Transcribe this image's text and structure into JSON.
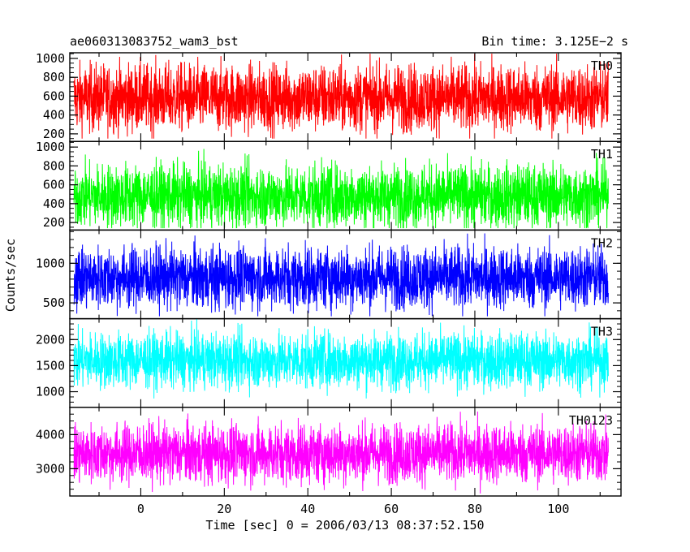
{
  "header": {
    "title": "ae060313083752_wam3_bst",
    "bin_time": "Bin time: 3.125E−2 s"
  },
  "chart_data": {
    "type": "line",
    "xlabel": "Time [sec] 0 = 2006/03/13 08:37:52.150",
    "ylabel": "Counts/sec",
    "xlim": [
      -17,
      115
    ],
    "x_data_range": [
      -16,
      112
    ],
    "xticks": [
      0,
      20,
      40,
      60,
      80,
      100
    ],
    "panels": [
      {
        "name": "TH0",
        "color": "#ff0000",
        "ylim": [
          120,
          1060
        ],
        "yticks": [
          200,
          400,
          600,
          800,
          1000
        ],
        "mean": 580,
        "spread": 180,
        "min": 150,
        "max": 1050
      },
      {
        "name": "TH1",
        "color": "#00ff00",
        "ylim": [
          120,
          1060
        ],
        "yticks": [
          200,
          400,
          600,
          800,
          1000
        ],
        "mean": 480,
        "spread": 170,
        "min": 140,
        "max": 1000
      },
      {
        "name": "TH2",
        "color": "#0000ff",
        "ylim": [
          300,
          1420
        ],
        "yticks": [
          500,
          1000
        ],
        "mean": 820,
        "spread": 200,
        "min": 330,
        "max": 1420
      },
      {
        "name": "TH3",
        "color": "#00ffff",
        "ylim": [
          700,
          2400
        ],
        "yticks": [
          1000,
          1500,
          2000
        ],
        "mean": 1600,
        "spread": 270,
        "min": 870,
        "max": 2400
      },
      {
        "name": "TH0123",
        "color": "#ff00ff",
        "ylim": [
          2200,
          4800
        ],
        "yticks": [
          3000,
          4000
        ],
        "mean": 3450,
        "spread": 440,
        "min": 2260,
        "max": 4800
      }
    ]
  }
}
